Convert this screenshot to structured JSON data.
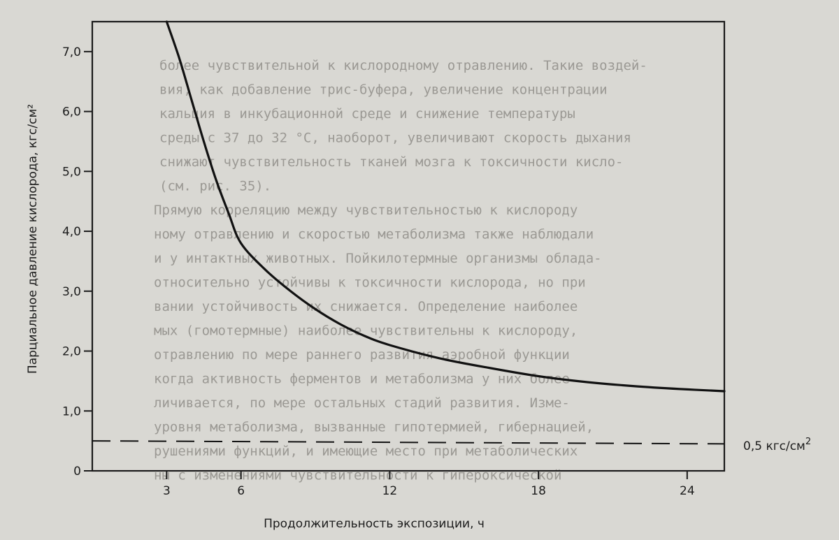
{
  "chart_data": {
    "type": "line",
    "title": "",
    "xlabel": "Продолжительность экспозиции, ч",
    "ylabel": "Парциальное давление кислорода, кгс/см²",
    "xlim": [
      0,
      25.5
    ],
    "ylim": [
      0,
      7.5
    ],
    "x_ticks": [
      3,
      6,
      12,
      18,
      24
    ],
    "y_ticks": [
      0,
      1.0,
      2.0,
      3.0,
      4.0,
      5.0,
      6.0,
      7.0
    ],
    "x_tick_labels": [
      "3",
      "6",
      "12",
      "18",
      "24"
    ],
    "y_tick_labels": [
      "0",
      "1,0",
      "2,0",
      "3,0",
      "4,0",
      "5,0",
      "6,0",
      "7,0"
    ],
    "grid": false,
    "series": [
      {
        "style": "solid",
        "color": "#111111",
        "x": [
          3.0,
          3.5,
          4.0,
          4.5,
          5.0,
          5.5,
          6.0,
          7.0,
          8.0,
          9.0,
          10.0,
          11.0,
          12.0,
          14.0,
          16.0,
          18.0,
          20.0,
          22.0,
          24.0,
          25.5
        ],
        "y": [
          7.5,
          6.9,
          6.2,
          5.5,
          4.85,
          4.3,
          3.8,
          3.35,
          3.0,
          2.7,
          2.45,
          2.25,
          2.1,
          1.88,
          1.72,
          1.58,
          1.48,
          1.41,
          1.36,
          1.33
        ]
      },
      {
        "style": "dashed",
        "color": "#111111",
        "x": [
          0,
          25.5
        ],
        "y": [
          0.5,
          0.45
        ]
      }
    ],
    "annotations": [
      {
        "text": "0,5 кгс/см",
        "superscript": "2",
        "target_y": 0.5
      }
    ]
  },
  "background_text": [
    "более чувствительной к кислородному отравлению. Такие воздей-",
    "вия, как добавление трис-буфера, увеличение концентрации",
    "кальция в инкубационной среде и снижение температуры",
    "среды с 37 до 32 °С, наоборот, увеличивают скорость дыхания",
    "снижают чувствительность тканей мозга к токсичности кисло-",
    "(см. рис. 35).",
    "Прямую корреляцию между чувствительностью к кислороду",
    "ному отравлению и скоростью метаболизма также наблюдали",
    "и у интактных животных. Пойкилотермные организмы облада-",
    "относительно устойчивы к токсичности кислорода, но при",
    "вании устойчивость их снижается. Определение наиболее",
    "мых (гомотермные) наиболее чувствительны к кислороду,",
    "отравлению по мере раннего развития аэробной функции",
    "когда активность ферментов и метаболизма у них более",
    "личивается, по мере остальных стадий развития. Изме-",
    "уровня метаболизма, вызванные гипотермией, гибернацией,",
    "рушениями функций, и имеющие место при метаболических",
    "ны с изменениями чувствительности к гипероксической"
  ]
}
